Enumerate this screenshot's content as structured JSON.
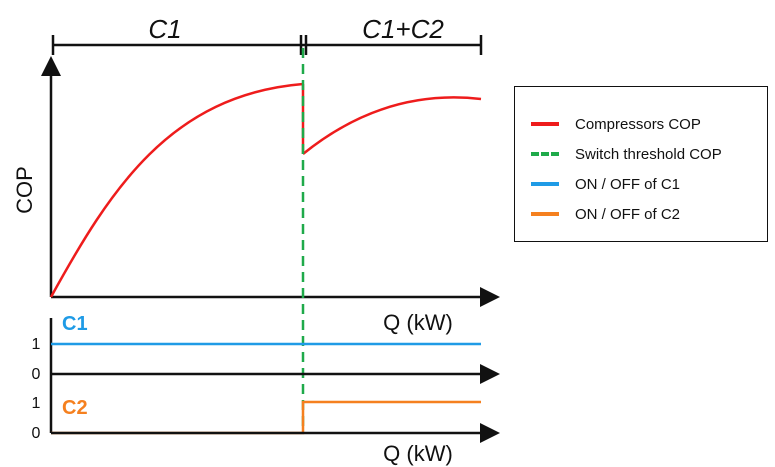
{
  "diagram": {
    "regions": [
      {
        "label": "C1"
      },
      {
        "label": "C1+C2"
      }
    ],
    "top_plot": {
      "ylabel": "COP",
      "xlabel": "Q (kW)"
    },
    "bottom_plot": {
      "xlabel": "Q (kW)",
      "row_c1_label": "C1",
      "row_c2_label": "C2",
      "c1_ticks": [
        "1",
        "0"
      ],
      "c2_ticks": [
        "1",
        "0"
      ]
    },
    "legend": [
      {
        "label": "Compressors COP",
        "style": "solid",
        "color": "#ee1c1c"
      },
      {
        "label": "Switch threshold COP",
        "style": "dashed",
        "color": "#1faa4a"
      },
      {
        "label": "ON / OFF of C1",
        "style": "solid",
        "color": "#1f9be6"
      },
      {
        "label": "ON / OFF of C2",
        "style": "solid",
        "color": "#f5801f"
      }
    ],
    "colors": {
      "cop": "#ee1c1c",
      "threshold": "#1faa4a",
      "c1": "#1f9be6",
      "c2": "#f5801f",
      "axis": "#111111"
    },
    "states": {
      "c1_on_before_switch": 1,
      "c1_on_after_switch": 1,
      "c2_on_before_switch": 0,
      "c2_on_after_switch": 1
    }
  }
}
